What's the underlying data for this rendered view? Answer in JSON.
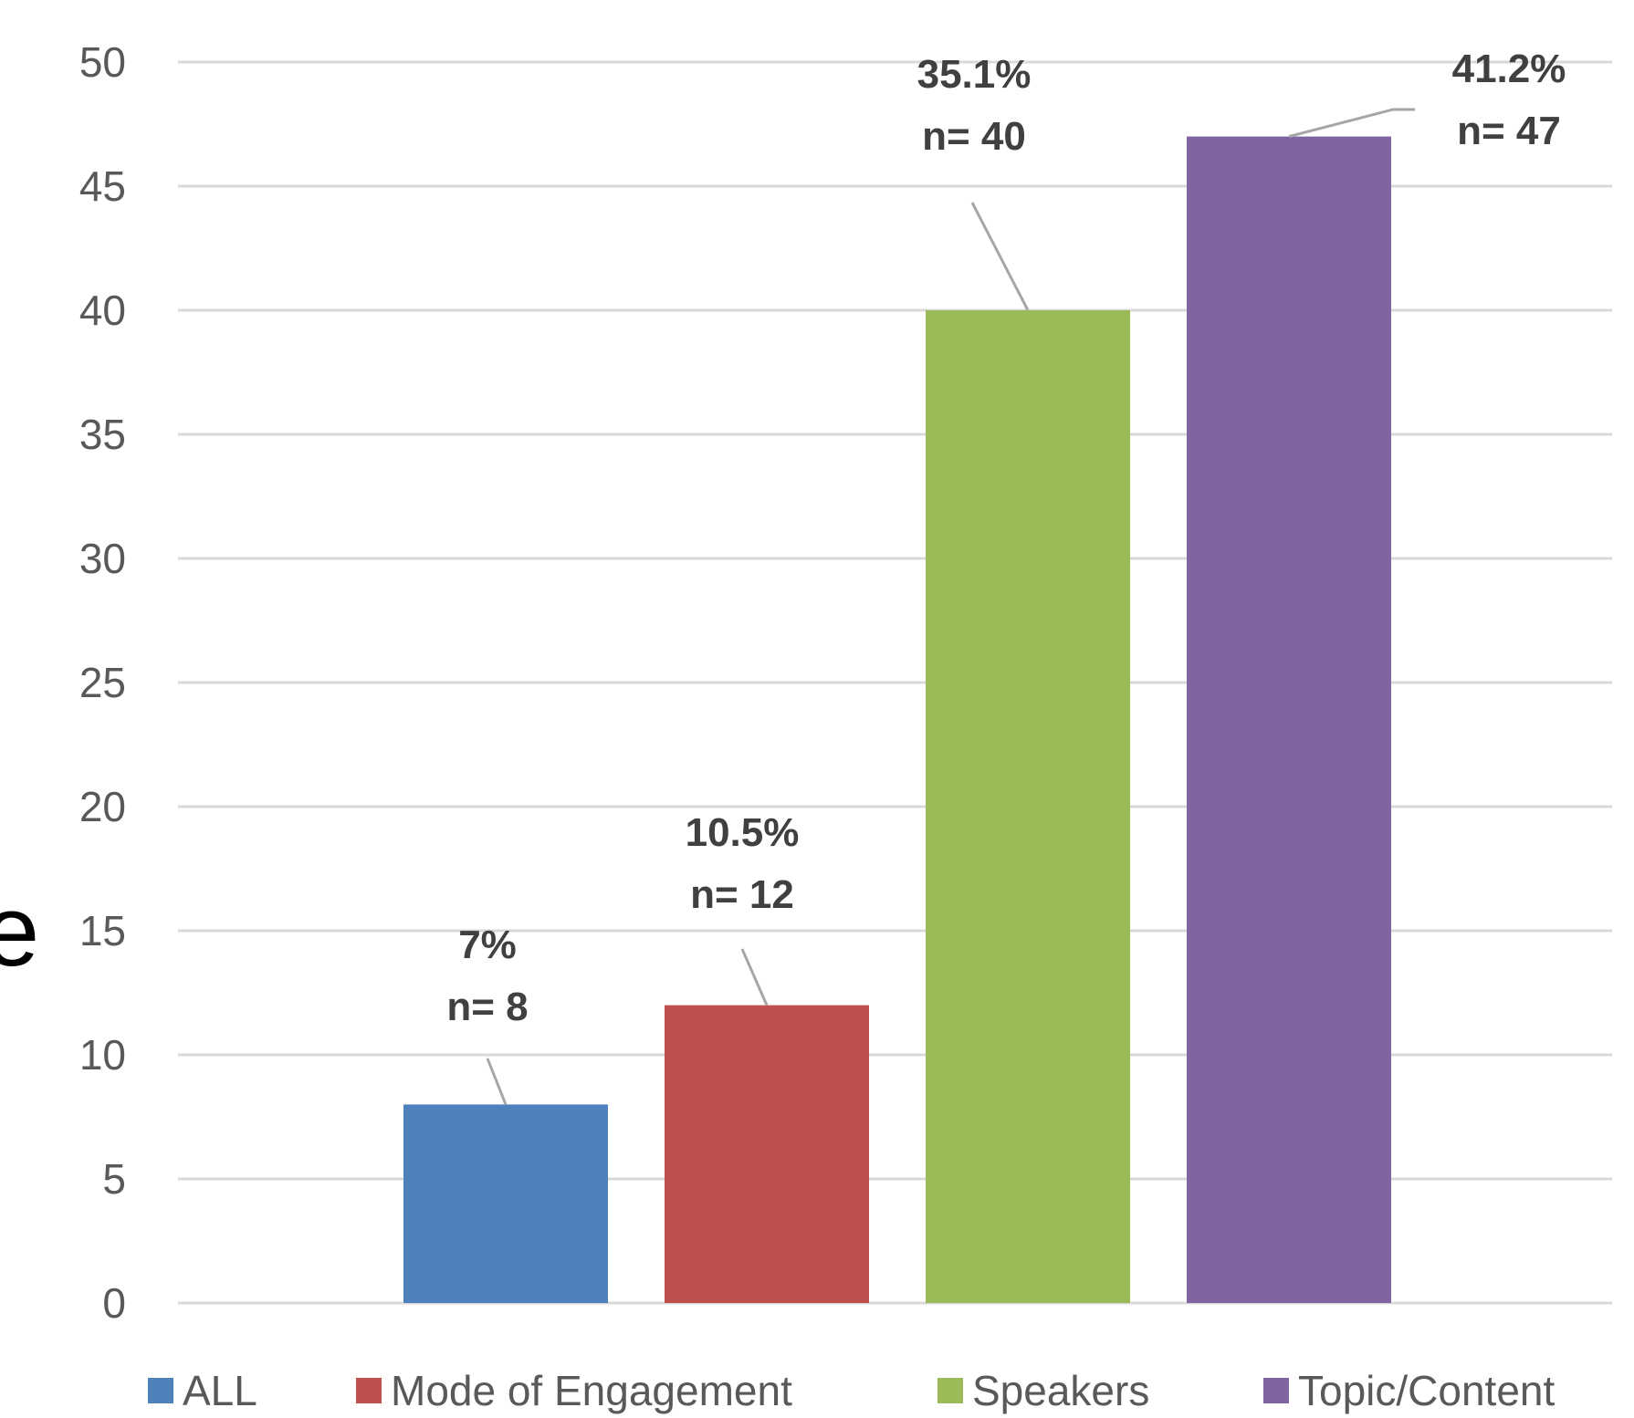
{
  "stray_text": "e",
  "chart_data": {
    "type": "bar",
    "ylim": [
      0,
      50
    ],
    "ytick_step": 5,
    "yticks": [
      "0",
      "5",
      "10",
      "15",
      "20",
      "25",
      "30",
      "35",
      "40",
      "45",
      "50"
    ],
    "grid": true,
    "legend_position": "bottom",
    "title": "",
    "xlabel": "",
    "ylabel": "",
    "series": [
      {
        "name": "ALL",
        "value": 8,
        "color": "#4f81bd",
        "label_pct": "7%",
        "label_n": "n= 8"
      },
      {
        "name": "Mode of Engagement",
        "value": 12,
        "color": "#c0504d",
        "label_pct": "10.5%",
        "label_n": "n= 12"
      },
      {
        "name": "Speakers",
        "value": 40,
        "color": "#9bbb59",
        "label_pct": "35.1%",
        "label_n": "n= 40"
      },
      {
        "name": "Topic/Content",
        "value": 47,
        "color": "#8064a2",
        "label_pct": "41.2%",
        "label_n": "n= 47"
      }
    ]
  }
}
